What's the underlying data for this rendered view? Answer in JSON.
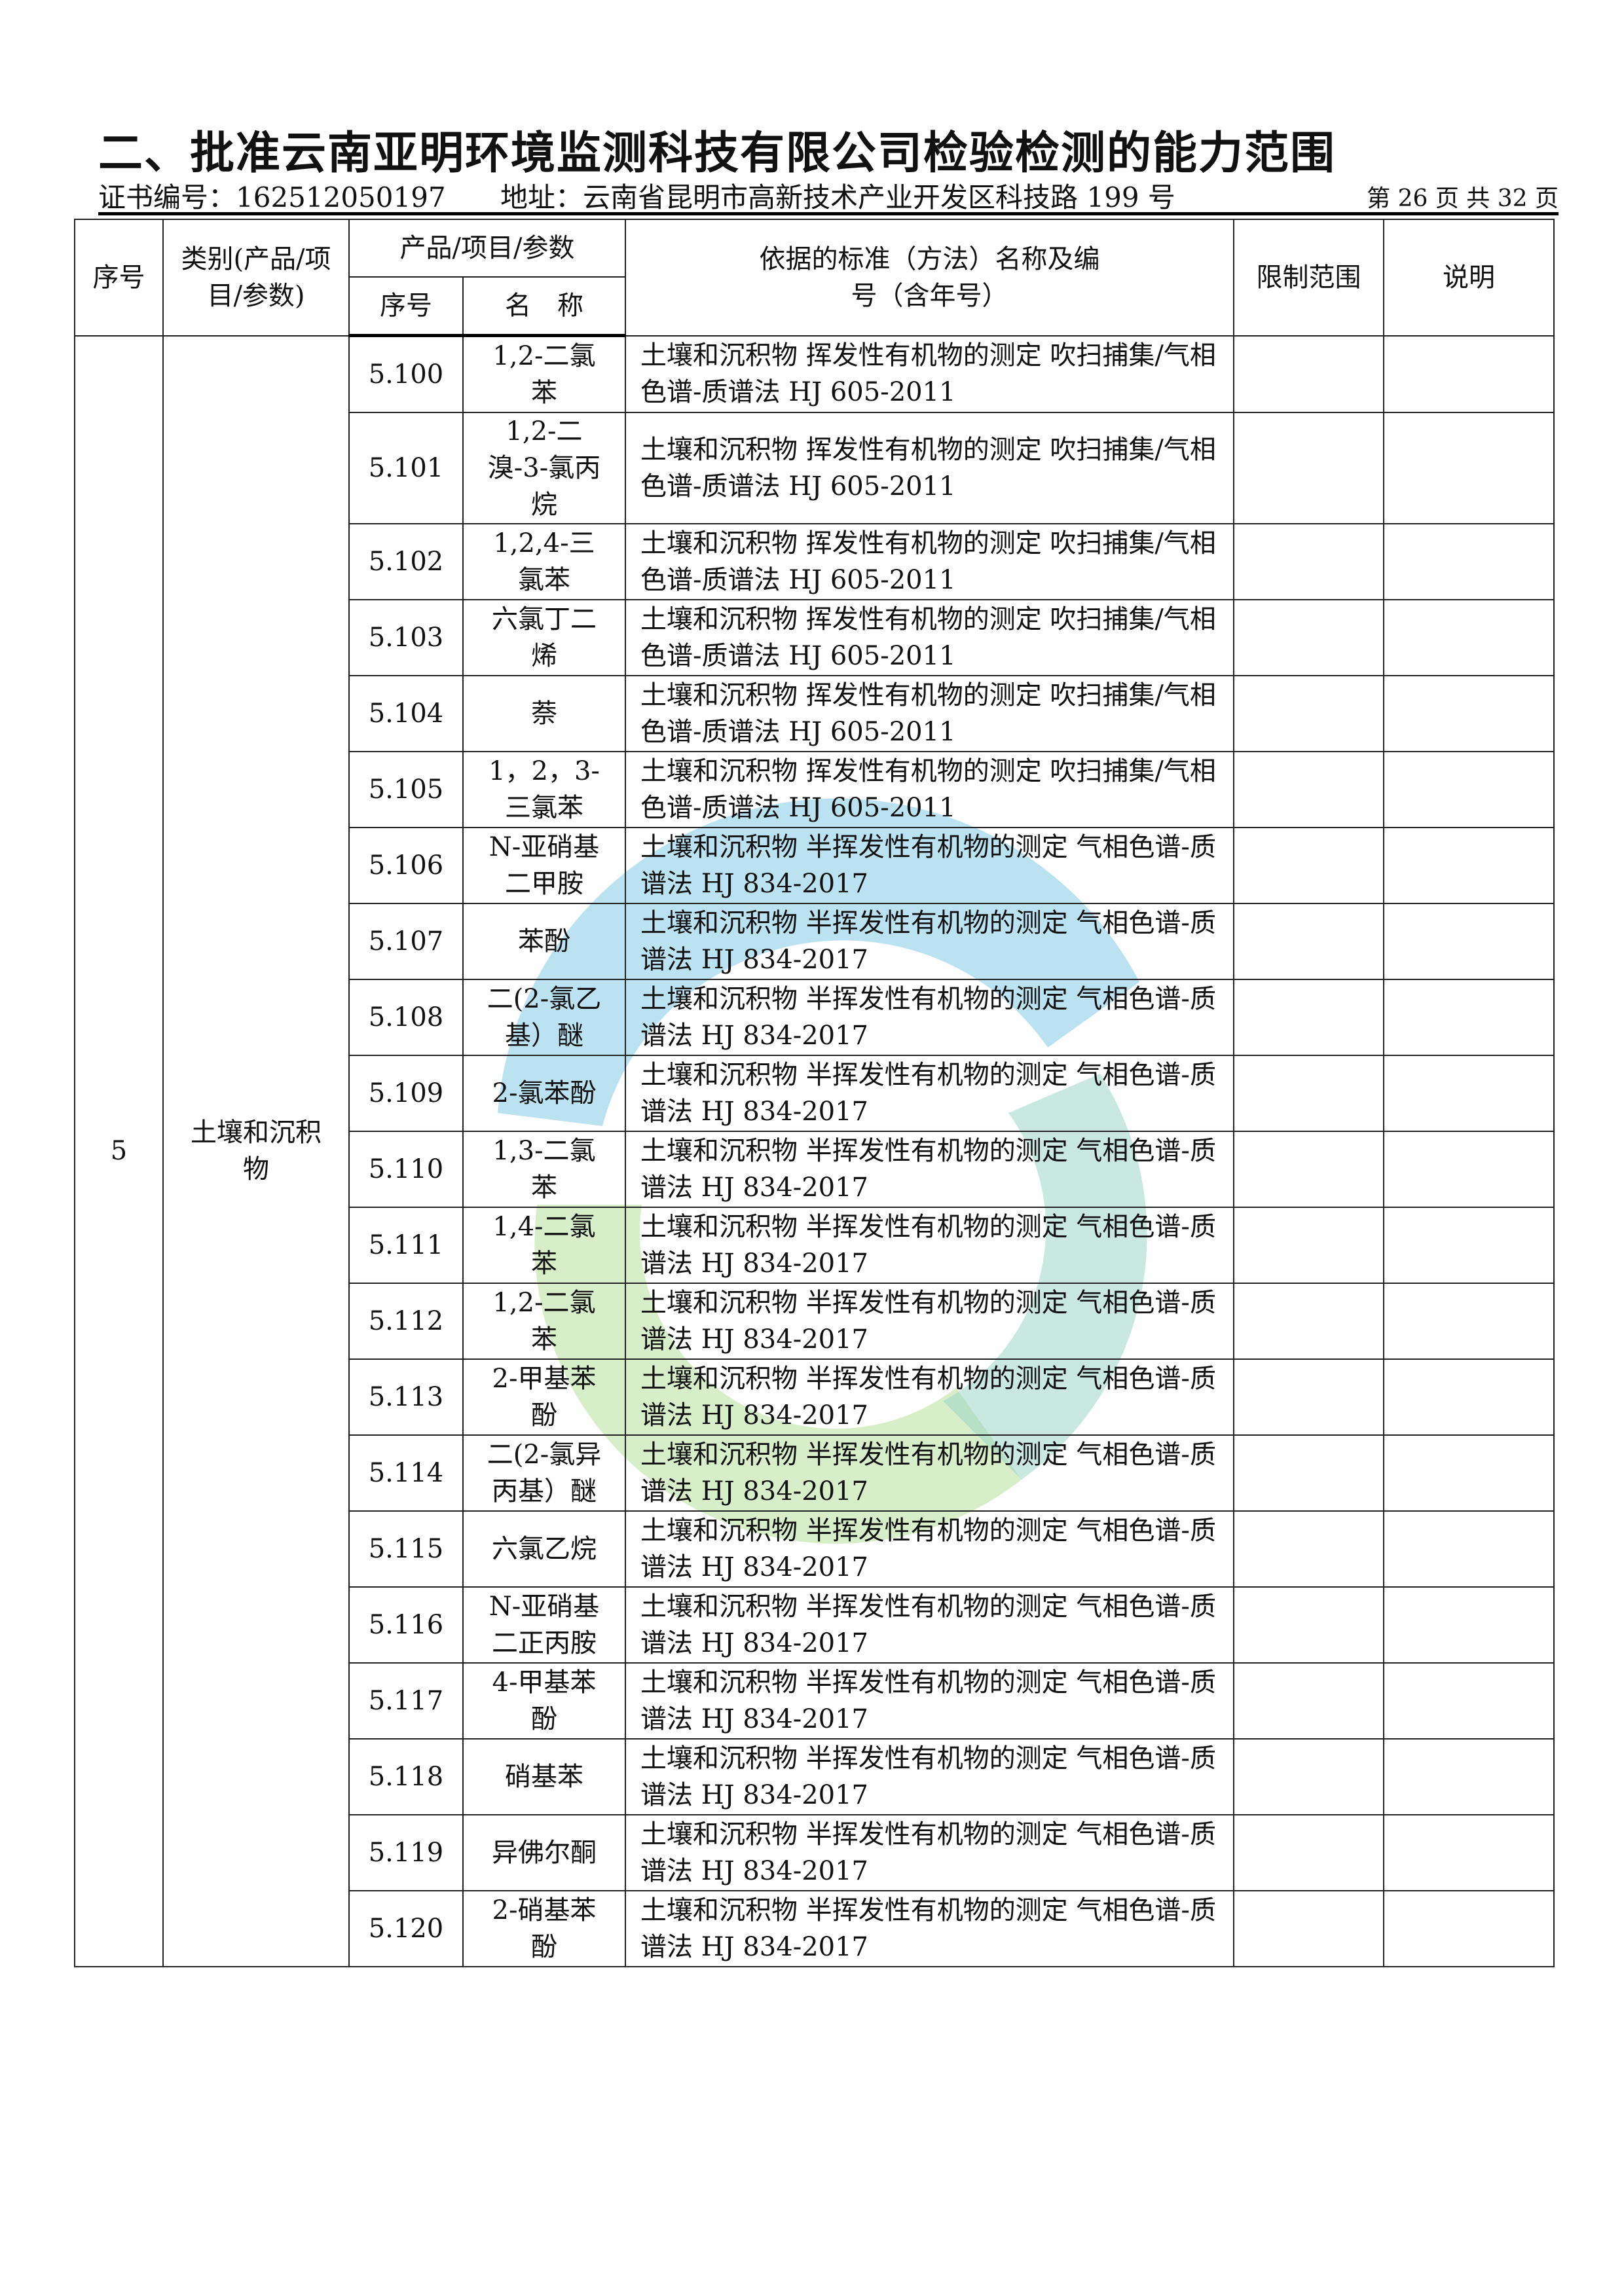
{
  "document": {
    "title": "二、批准云南亚明环境监测科技有限公司检验检测的能力范围",
    "cert_no": "证书编号：162512050197",
    "address": "地址：云南省昆明市高新技术产业开发区科技路 199 号",
    "page_info": "第 26 页 共 32 页"
  },
  "table": {
    "headers": {
      "seq": "序号",
      "category": "类别(产品/项目/参数)",
      "product_group": "产品/项目/参数",
      "sub_seq": "序号",
      "sub_name": "名　称",
      "standard": "依据的标准（方法）名称及编号（含年号）",
      "limit": "限制范围",
      "note": "说明"
    },
    "group_seq": "5",
    "group_category": "土壤和沉积物",
    "rows": [
      {
        "no": "5.100",
        "name": "1,2-二氯苯",
        "std": "土壤和沉积物 挥发性有机物的测定 吹扫捕集/气相色谱-质谱法 HJ 605-2011"
      },
      {
        "no": "5.101",
        "name": "1,2-二溴-3-氯丙烷",
        "std": "土壤和沉积物 挥发性有机物的测定 吹扫捕集/气相色谱-质谱法 HJ 605-2011"
      },
      {
        "no": "5.102",
        "name": "1,2,4-三氯苯",
        "std": "土壤和沉积物 挥发性有机物的测定 吹扫捕集/气相色谱-质谱法 HJ 605-2011"
      },
      {
        "no": "5.103",
        "name": "六氯丁二烯",
        "std": "土壤和沉积物 挥发性有机物的测定 吹扫捕集/气相色谱-质谱法 HJ 605-2011"
      },
      {
        "no": "5.104",
        "name": "萘",
        "std": "土壤和沉积物 挥发性有机物的测定 吹扫捕集/气相色谱-质谱法 HJ 605-2011"
      },
      {
        "no": "5.105",
        "name": "1，2，3-三氯苯",
        "std": "土壤和沉积物 挥发性有机物的测定 吹扫捕集/气相色谱-质谱法 HJ 605-2011"
      },
      {
        "no": "5.106",
        "name": "N-亚硝基二甲胺",
        "std": "土壤和沉积物 半挥发性有机物的测定 气相色谱-质谱法 HJ 834-2017"
      },
      {
        "no": "5.107",
        "name": "苯酚",
        "std": "土壤和沉积物 半挥发性有机物的测定 气相色谱-质谱法 HJ 834-2017"
      },
      {
        "no": "5.108",
        "name": "二(2-氯乙基）醚",
        "std": "土壤和沉积物 半挥发性有机物的测定 气相色谱-质谱法 HJ 834-2017"
      },
      {
        "no": "5.109",
        "name": "2-氯苯酚",
        "std": "土壤和沉积物 半挥发性有机物的测定 气相色谱-质谱法 HJ 834-2017"
      },
      {
        "no": "5.110",
        "name": "1,3-二氯苯",
        "std": "土壤和沉积物 半挥发性有机物的测定 气相色谱-质谱法 HJ 834-2017"
      },
      {
        "no": "5.111",
        "name": "1,4-二氯苯",
        "std": "土壤和沉积物 半挥发性有机物的测定 气相色谱-质谱法 HJ 834-2017"
      },
      {
        "no": "5.112",
        "name": "1,2-二氯苯",
        "std": "土壤和沉积物 半挥发性有机物的测定 气相色谱-质谱法 HJ 834-2017"
      },
      {
        "no": "5.113",
        "name": "2-甲基苯酚",
        "std": "土壤和沉积物 半挥发性有机物的测定 气相色谱-质谱法 HJ 834-2017"
      },
      {
        "no": "5.114",
        "name": "二(2-氯异丙基）醚",
        "std": "土壤和沉积物 半挥发性有机物的测定 气相色谱-质谱法 HJ 834-2017"
      },
      {
        "no": "5.115",
        "name": "六氯乙烷",
        "std": "土壤和沉积物 半挥发性有机物的测定 气相色谱-质谱法 HJ 834-2017"
      },
      {
        "no": "5.116",
        "name": "N-亚硝基二正丙胺",
        "std": "土壤和沉积物 半挥发性有机物的测定 气相色谱-质谱法 HJ 834-2017"
      },
      {
        "no": "5.117",
        "name": "4-甲基苯酚",
        "std": "土壤和沉积物 半挥发性有机物的测定 气相色谱-质谱法 HJ 834-2017"
      },
      {
        "no": "5.118",
        "name": "硝基苯",
        "std": "土壤和沉积物 半挥发性有机物的测定 气相色谱-质谱法 HJ 834-2017"
      },
      {
        "no": "5.119",
        "name": "异佛尔酮",
        "std": "土壤和沉积物 半挥发性有机物的测定 气相色谱-质谱法 HJ 834-2017"
      },
      {
        "no": "5.120",
        "name": "2-硝基苯酚",
        "std": "土壤和沉积物 半挥发性有机物的测定 气相色谱-质谱法 HJ 834-2017"
      }
    ]
  },
  "watermark": {
    "colors": {
      "blue": "#5bb8dc",
      "green": "#9fd77a"
    }
  }
}
